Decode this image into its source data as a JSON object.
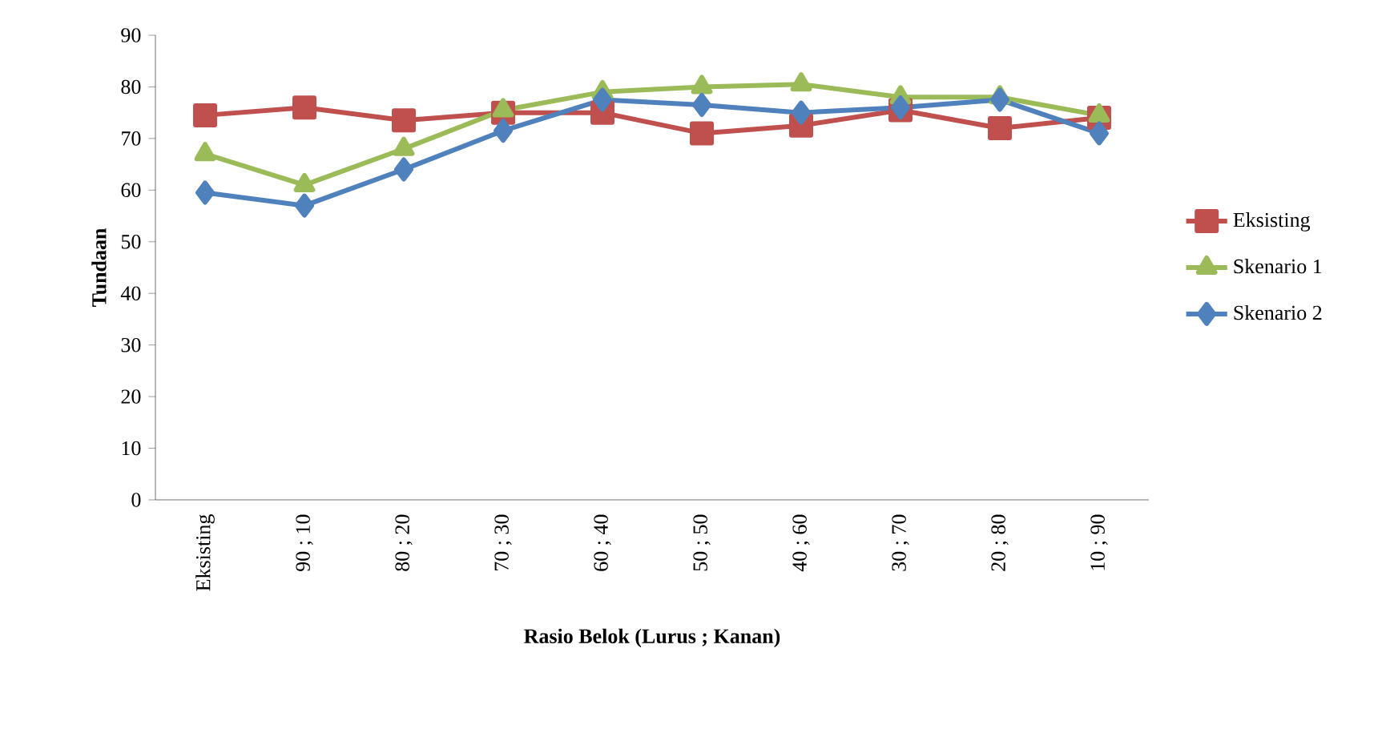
{
  "chart_data": {
    "type": "line",
    "xlabel": "Rasio Belok (Lurus ; Kanan)",
    "ylabel": "Tundaan",
    "categories": [
      "Eksisting",
      "90 ; 10",
      "80 ; 20",
      "70 ; 30",
      "60 ; 40",
      "50 ; 50",
      "40 ; 60",
      "30 ; 70",
      "20 ; 80",
      "10 ; 90"
    ],
    "series": [
      {
        "name": "Eksisting",
        "color": "#c0504d",
        "marker": "square",
        "values": [
          74.5,
          76,
          73.5,
          75,
          75,
          71,
          72.5,
          75.5,
          72,
          74
        ]
      },
      {
        "name": "Skenario 1",
        "color": "#9bbb59",
        "marker": "triangle",
        "values": [
          67,
          61,
          68,
          75.5,
          79,
          80,
          80.5,
          78,
          78,
          74.5
        ]
      },
      {
        "name": "Skenario 2",
        "color": "#4f81bd",
        "marker": "diamond",
        "values": [
          59.5,
          57,
          64,
          71.5,
          77.5,
          76.5,
          75,
          76,
          77.5,
          71
        ]
      }
    ],
    "ylim": [
      0,
      90
    ],
    "yticks": [
      0,
      10,
      20,
      30,
      40,
      50,
      60,
      70,
      80,
      90
    ],
    "grid": false,
    "legend": "right",
    "line_style": "solid"
  }
}
